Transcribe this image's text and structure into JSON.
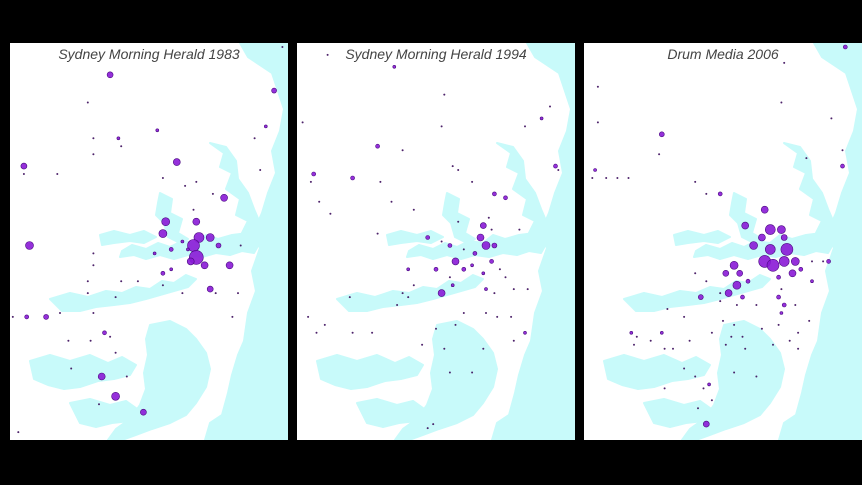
{
  "panels": [
    {
      "title": "Sydney Morning Herald 1983",
      "points": [
        [
          0.98,
          0.01,
          1
        ],
        [
          0.36,
          0.08,
          3
        ],
        [
          0.95,
          0.12,
          2.5
        ],
        [
          0.28,
          0.15,
          1
        ],
        [
          0.92,
          0.21,
          1.5
        ],
        [
          0.88,
          0.24,
          1
        ],
        [
          0.53,
          0.22,
          1.5
        ],
        [
          0.39,
          0.24,
          1.5
        ],
        [
          0.3,
          0.24,
          1
        ],
        [
          0.4,
          0.26,
          1
        ],
        [
          0.3,
          0.28,
          1
        ],
        [
          0.6,
          0.3,
          3.5
        ],
        [
          0.05,
          0.31,
          3
        ],
        [
          0.05,
          0.33,
          1
        ],
        [
          0.17,
          0.33,
          1
        ],
        [
          0.9,
          0.32,
          1
        ],
        [
          0.55,
          0.34,
          1
        ],
        [
          0.67,
          0.35,
          1
        ],
        [
          0.77,
          0.39,
          3.5
        ],
        [
          0.73,
          0.38,
          1
        ],
        [
          0.63,
          0.36,
          1
        ],
        [
          0.66,
          0.42,
          1
        ],
        [
          0.56,
          0.45,
          4
        ],
        [
          0.55,
          0.48,
          4
        ],
        [
          0.67,
          0.45,
          3.5
        ],
        [
          0.68,
          0.49,
          5
        ],
        [
          0.66,
          0.51,
          6
        ],
        [
          0.67,
          0.54,
          7
        ],
        [
          0.72,
          0.49,
          4
        ],
        [
          0.75,
          0.51,
          2.5
        ],
        [
          0.65,
          0.55,
          3.5
        ],
        [
          0.7,
          0.56,
          3.5
        ],
        [
          0.62,
          0.5,
          1.5
        ],
        [
          0.58,
          0.52,
          2
        ],
        [
          0.64,
          0.52,
          1.5
        ],
        [
          0.07,
          0.51,
          4
        ],
        [
          0.3,
          0.53,
          1
        ],
        [
          0.52,
          0.53,
          1.5
        ],
        [
          0.55,
          0.58,
          2
        ],
        [
          0.58,
          0.57,
          1.5
        ],
        [
          0.79,
          0.56,
          3.5
        ],
        [
          0.83,
          0.51,
          1
        ],
        [
          0.3,
          0.56,
          1
        ],
        [
          0.28,
          0.6,
          1
        ],
        [
          0.4,
          0.6,
          1
        ],
        [
          0.46,
          0.6,
          1
        ],
        [
          0.55,
          0.61,
          1
        ],
        [
          0.62,
          0.63,
          1
        ],
        [
          0.72,
          0.62,
          3
        ],
        [
          0.74,
          0.63,
          1
        ],
        [
          0.82,
          0.63,
          1
        ],
        [
          0.8,
          0.69,
          1
        ],
        [
          0.28,
          0.63,
          1
        ],
        [
          0.38,
          0.64,
          1
        ],
        [
          0.01,
          0.69,
          1
        ],
        [
          0.06,
          0.69,
          2
        ],
        [
          0.13,
          0.69,
          2.5
        ],
        [
          0.18,
          0.68,
          1
        ],
        [
          0.3,
          0.68,
          1
        ],
        [
          0.34,
          0.73,
          2
        ],
        [
          0.36,
          0.74,
          1
        ],
        [
          0.21,
          0.75,
          1
        ],
        [
          0.29,
          0.75,
          1
        ],
        [
          0.38,
          0.78,
          1
        ],
        [
          0.33,
          0.84,
          3.5
        ],
        [
          0.22,
          0.82,
          1
        ],
        [
          0.42,
          0.84,
          1
        ],
        [
          0.38,
          0.89,
          4
        ],
        [
          0.32,
          0.91,
          1
        ],
        [
          0.48,
          0.93,
          3
        ],
        [
          0.03,
          0.98,
          1
        ]
      ]
    },
    {
      "title": "Sydney Morning Herald 1994",
      "points": [
        [
          0.11,
          0.03,
          1
        ],
        [
          0.35,
          0.06,
          1.5
        ],
        [
          0.53,
          0.13,
          1
        ],
        [
          0.91,
          0.16,
          1
        ],
        [
          0.88,
          0.19,
          1.5
        ],
        [
          0.52,
          0.21,
          1
        ],
        [
          0.82,
          0.21,
          1
        ],
        [
          0.02,
          0.2,
          1
        ],
        [
          0.29,
          0.26,
          2
        ],
        [
          0.38,
          0.27,
          1
        ],
        [
          0.56,
          0.31,
          1
        ],
        [
          0.58,
          0.32,
          1
        ],
        [
          0.93,
          0.31,
          2
        ],
        [
          0.94,
          0.32,
          1
        ],
        [
          0.06,
          0.33,
          2
        ],
        [
          0.05,
          0.35,
          1
        ],
        [
          0.2,
          0.34,
          2
        ],
        [
          0.3,
          0.35,
          1
        ],
        [
          0.63,
          0.35,
          1
        ],
        [
          0.71,
          0.38,
          2
        ],
        [
          0.75,
          0.39,
          2
        ],
        [
          0.08,
          0.4,
          1
        ],
        [
          0.34,
          0.4,
          1
        ],
        [
          0.12,
          0.43,
          1
        ],
        [
          0.42,
          0.42,
          1
        ],
        [
          0.69,
          0.44,
          1
        ],
        [
          0.58,
          0.45,
          1
        ],
        [
          0.67,
          0.46,
          3
        ],
        [
          0.7,
          0.47,
          1
        ],
        [
          0.8,
          0.47,
          1
        ],
        [
          0.29,
          0.48,
          1
        ],
        [
          0.47,
          0.49,
          2
        ],
        [
          0.52,
          0.5,
          1
        ],
        [
          0.55,
          0.51,
          2
        ],
        [
          0.6,
          0.52,
          1
        ],
        [
          0.66,
          0.49,
          3.5
        ],
        [
          0.68,
          0.51,
          4
        ],
        [
          0.71,
          0.51,
          2.5
        ],
        [
          0.64,
          0.53,
          2
        ],
        [
          0.57,
          0.55,
          3.5
        ],
        [
          0.6,
          0.57,
          2
        ],
        [
          0.63,
          0.56,
          1.5
        ],
        [
          0.67,
          0.58,
          1.5
        ],
        [
          0.7,
          0.55,
          2
        ],
        [
          0.73,
          0.57,
          1
        ],
        [
          0.55,
          0.59,
          1
        ],
        [
          0.4,
          0.57,
          1.5
        ],
        [
          0.5,
          0.57,
          2
        ],
        [
          0.56,
          0.61,
          1.5
        ],
        [
          0.75,
          0.59,
          1
        ],
        [
          0.52,
          0.63,
          3.5
        ],
        [
          0.42,
          0.61,
          1
        ],
        [
          0.38,
          0.63,
          1
        ],
        [
          0.68,
          0.62,
          1.5
        ],
        [
          0.71,
          0.63,
          1
        ],
        [
          0.78,
          0.62,
          1
        ],
        [
          0.83,
          0.62,
          1
        ],
        [
          0.6,
          0.68,
          1
        ],
        [
          0.68,
          0.68,
          1
        ],
        [
          0.72,
          0.69,
          1
        ],
        [
          0.77,
          0.69,
          1
        ],
        [
          0.19,
          0.64,
          1
        ],
        [
          0.4,
          0.64,
          1
        ],
        [
          0.36,
          0.66,
          1
        ],
        [
          0.04,
          0.69,
          1
        ],
        [
          0.1,
          0.71,
          1
        ],
        [
          0.07,
          0.73,
          1
        ],
        [
          0.2,
          0.73,
          1
        ],
        [
          0.27,
          0.73,
          1
        ],
        [
          0.5,
          0.72,
          1
        ],
        [
          0.57,
          0.71,
          1
        ],
        [
          0.82,
          0.73,
          1.5
        ],
        [
          0.45,
          0.76,
          1
        ],
        [
          0.53,
          0.77,
          1
        ],
        [
          0.67,
          0.77,
          1
        ],
        [
          0.78,
          0.75,
          1
        ],
        [
          0.55,
          0.83,
          1
        ],
        [
          0.63,
          0.83,
          1
        ],
        [
          0.49,
          0.96,
          1
        ],
        [
          0.47,
          0.97,
          1
        ]
      ]
    },
    {
      "title": "Drum Media 2006",
      "points": [
        [
          0.94,
          0.01,
          2
        ],
        [
          0.72,
          0.05,
          1
        ],
        [
          0.05,
          0.11,
          1
        ],
        [
          0.71,
          0.15,
          1
        ],
        [
          0.89,
          0.19,
          1
        ],
        [
          0.05,
          0.2,
          1
        ],
        [
          0.28,
          0.23,
          2.5
        ],
        [
          0.93,
          0.27,
          1
        ],
        [
          0.27,
          0.28,
          1
        ],
        [
          0.8,
          0.29,
          1
        ],
        [
          0.93,
          0.31,
          2
        ],
        [
          0.04,
          0.32,
          1.5
        ],
        [
          0.03,
          0.34,
          1
        ],
        [
          0.08,
          0.34,
          1
        ],
        [
          0.12,
          0.34,
          1
        ],
        [
          0.16,
          0.34,
          1
        ],
        [
          0.4,
          0.35,
          1
        ],
        [
          0.44,
          0.38,
          1
        ],
        [
          0.49,
          0.38,
          2
        ],
        [
          0.65,
          0.42,
          3.5
        ],
        [
          0.58,
          0.46,
          3.5
        ],
        [
          0.67,
          0.47,
          5
        ],
        [
          0.71,
          0.47,
          4
        ],
        [
          0.72,
          0.49,
          3
        ],
        [
          0.64,
          0.49,
          3.5
        ],
        [
          0.61,
          0.51,
          4
        ],
        [
          0.67,
          0.52,
          5
        ],
        [
          0.73,
          0.52,
          6
        ],
        [
          0.65,
          0.55,
          6
        ],
        [
          0.68,
          0.56,
          6
        ],
        [
          0.72,
          0.55,
          5
        ],
        [
          0.76,
          0.55,
          4
        ],
        [
          0.75,
          0.58,
          3.5
        ],
        [
          0.78,
          0.57,
          2
        ],
        [
          0.7,
          0.59,
          2
        ],
        [
          0.54,
          0.56,
          4
        ],
        [
          0.56,
          0.58,
          3
        ],
        [
          0.51,
          0.58,
          3
        ],
        [
          0.55,
          0.61,
          4
        ],
        [
          0.52,
          0.63,
          3.5
        ],
        [
          0.59,
          0.6,
          2
        ],
        [
          0.82,
          0.55,
          1
        ],
        [
          0.86,
          0.55,
          1
        ],
        [
          0.88,
          0.55,
          2
        ],
        [
          0.82,
          0.6,
          1.5
        ],
        [
          0.4,
          0.58,
          1
        ],
        [
          0.44,
          0.6,
          1
        ],
        [
          0.42,
          0.64,
          2.5
        ],
        [
          0.57,
          0.64,
          2
        ],
        [
          0.7,
          0.64,
          2
        ],
        [
          0.72,
          0.66,
          2
        ],
        [
          0.76,
          0.66,
          1
        ],
        [
          0.71,
          0.68,
          1.5
        ],
        [
          0.49,
          0.65,
          1
        ],
        [
          0.55,
          0.66,
          1
        ],
        [
          0.62,
          0.66,
          1
        ],
        [
          0.71,
          0.62,
          1
        ],
        [
          0.36,
          0.69,
          1
        ],
        [
          0.3,
          0.67,
          1
        ],
        [
          0.5,
          0.7,
          1
        ],
        [
          0.54,
          0.71,
          1
        ],
        [
          0.64,
          0.72,
          1
        ],
        [
          0.7,
          0.71,
          1
        ],
        [
          0.81,
          0.7,
          1
        ],
        [
          0.51,
          0.76,
          1
        ],
        [
          0.58,
          0.77,
          1
        ],
        [
          0.68,
          0.76,
          1
        ],
        [
          0.74,
          0.75,
          1
        ],
        [
          0.77,
          0.77,
          1
        ],
        [
          0.49,
          0.63,
          1
        ],
        [
          0.53,
          0.74,
          1
        ],
        [
          0.57,
          0.74,
          1
        ],
        [
          0.77,
          0.73,
          1
        ],
        [
          0.17,
          0.73,
          1.5
        ],
        [
          0.19,
          0.74,
          1
        ],
        [
          0.18,
          0.76,
          1
        ],
        [
          0.28,
          0.73,
          1.5
        ],
        [
          0.24,
          0.75,
          1
        ],
        [
          0.29,
          0.77,
          1
        ],
        [
          0.38,
          0.75,
          1
        ],
        [
          0.32,
          0.77,
          1
        ],
        [
          0.46,
          0.73,
          1
        ],
        [
          0.54,
          0.83,
          1
        ],
        [
          0.62,
          0.84,
          1
        ],
        [
          0.36,
          0.82,
          1
        ],
        [
          0.4,
          0.84,
          1
        ],
        [
          0.45,
          0.86,
          1.5
        ],
        [
          0.29,
          0.87,
          1
        ],
        [
          0.43,
          0.87,
          1
        ],
        [
          0.46,
          0.9,
          1
        ],
        [
          0.41,
          0.92,
          1
        ],
        [
          0.44,
          0.96,
          3
        ]
      ]
    }
  ],
  "colors": {
    "water": "#c8fafa",
    "land": "#ffffff",
    "dot_fill": "#8a1ad6",
    "dot_stroke": "#4a0a80",
    "background": "#000000"
  }
}
